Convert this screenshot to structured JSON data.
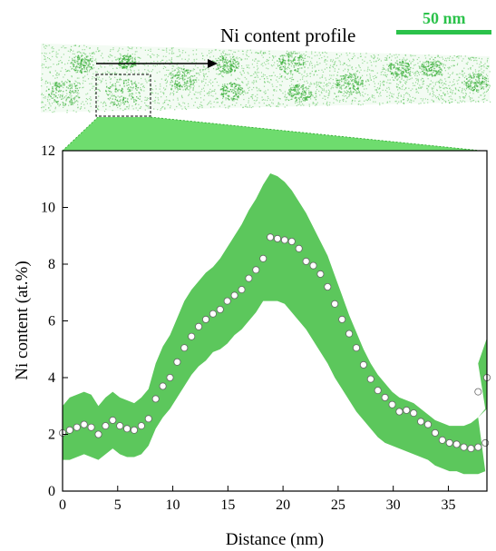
{
  "header": {
    "profile_label": "Ni content profile",
    "scale_bar_label": "50 nm"
  },
  "colors": {
    "band": "#5cc75c",
    "scale_bar": "#2bc24a",
    "atom_dots": "#4fbf4f",
    "zoom_wedge": "#6edc6e"
  },
  "chart_data": {
    "type": "line",
    "xlabel": "Distance (nm)",
    "ylabel": "Ni content (at.%)",
    "xlim": [
      0,
      38.5
    ],
    "ylim": [
      0,
      12
    ],
    "xticks": [
      0,
      5,
      10,
      15,
      20,
      25,
      30,
      35
    ],
    "yticks": [
      0,
      2,
      4,
      6,
      8,
      10,
      12
    ],
    "grid": false,
    "series": [
      {
        "marker": "open-circle",
        "x": [
          0,
          0.65,
          1.3,
          1.95,
          2.6,
          3.25,
          3.9,
          4.55,
          5.2,
          5.85,
          6.5,
          7.15,
          7.8,
          8.45,
          9.1,
          9.75,
          10.4,
          11.05,
          11.7,
          12.35,
          13,
          13.65,
          14.3,
          14.95,
          15.6,
          16.25,
          16.9,
          17.55,
          18.2,
          18.85,
          19.5,
          20.15,
          20.8,
          21.45,
          22.1,
          22.75,
          23.4,
          24.05,
          24.7,
          25.35,
          26,
          26.65,
          27.3,
          27.95,
          28.6,
          29.25,
          29.9,
          30.55,
          31.2,
          31.85,
          32.5,
          33.15,
          33.8,
          34.45,
          35.1,
          35.75,
          36.4,
          37.05,
          37.7,
          38.35
        ],
        "y": [
          2.05,
          2.15,
          2.25,
          2.35,
          2.25,
          2.0,
          2.3,
          2.5,
          2.3,
          2.2,
          2.15,
          2.3,
          2.55,
          3.25,
          3.7,
          4.0,
          4.55,
          5.05,
          5.45,
          5.8,
          6.05,
          6.25,
          6.4,
          6.7,
          6.9,
          7.1,
          7.5,
          7.8,
          8.2,
          8.95,
          8.9,
          8.85,
          8.8,
          8.55,
          8.1,
          7.95,
          7.65,
          7.2,
          6.6,
          6.05,
          5.55,
          5.05,
          4.45,
          3.95,
          3.55,
          3.3,
          3.05,
          2.8,
          2.85,
          2.75,
          2.45,
          2.35,
          2.05,
          1.8,
          1.7,
          1.65,
          1.55,
          1.5,
          1.55,
          1.7
        ],
        "y_upper": [
          3.0,
          3.3,
          3.4,
          3.5,
          3.4,
          3.0,
          3.3,
          3.5,
          3.3,
          3.2,
          3.1,
          3.3,
          3.6,
          4.5,
          5.1,
          5.5,
          6.1,
          6.7,
          7.1,
          7.4,
          7.7,
          7.9,
          8.2,
          8.6,
          9.0,
          9.4,
          9.9,
          10.3,
          10.8,
          11.2,
          11.1,
          10.9,
          10.6,
          10.2,
          9.8,
          9.3,
          8.8,
          8.3,
          7.6,
          6.9,
          6.2,
          5.6,
          5.0,
          4.5,
          4.1,
          3.8,
          3.5,
          3.3,
          3.2,
          3.1,
          2.9,
          2.7,
          2.5,
          2.4,
          2.3,
          2.3,
          2.3,
          2.4,
          2.6,
          2.9
        ],
        "y_lower": [
          1.1,
          1.1,
          1.2,
          1.3,
          1.2,
          1.1,
          1.3,
          1.5,
          1.3,
          1.2,
          1.2,
          1.3,
          1.6,
          2.2,
          2.6,
          2.9,
          3.3,
          3.7,
          4.1,
          4.4,
          4.6,
          4.9,
          5.0,
          5.2,
          5.5,
          5.7,
          6.0,
          6.3,
          6.7,
          6.7,
          6.7,
          6.6,
          6.3,
          6.0,
          5.7,
          5.3,
          4.9,
          4.5,
          4.0,
          3.6,
          3.2,
          2.8,
          2.5,
          2.2,
          1.9,
          1.7,
          1.6,
          1.5,
          1.4,
          1.3,
          1.2,
          1.1,
          0.9,
          0.8,
          0.7,
          0.7,
          0.6,
          0.6,
          0.6,
          0.7
        ]
      }
    ],
    "tail_x": [
      37.7,
      38.5
    ],
    "tail_y": [
      3.5,
      4.0
    ],
    "tail_upper": [
      4.5,
      5.4
    ],
    "tail_lower": [
      2.6,
      2.9
    ]
  }
}
